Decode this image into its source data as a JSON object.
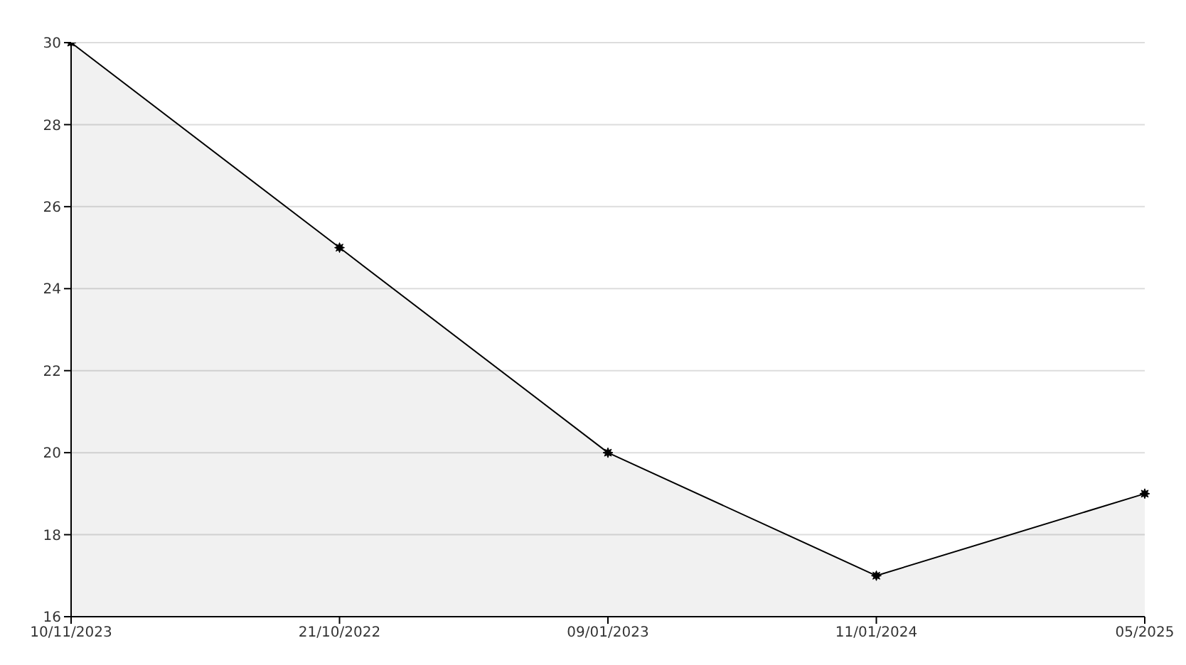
{
  "chart_data": {
    "type": "area",
    "categories": [
      "10/11/2023",
      "21/10/2022",
      "09/01/2023",
      "11/01/2024",
      "05/2025"
    ],
    "series": [
      {
        "color": "#000000",
        "values": [
          30,
          25,
          20,
          17,
          19
        ]
      }
    ],
    "ylim": [
      16,
      30
    ],
    "yticks": [
      16,
      18,
      20,
      22,
      24,
      26,
      28,
      30
    ],
    "grid": "y",
    "marker": "star"
  }
}
